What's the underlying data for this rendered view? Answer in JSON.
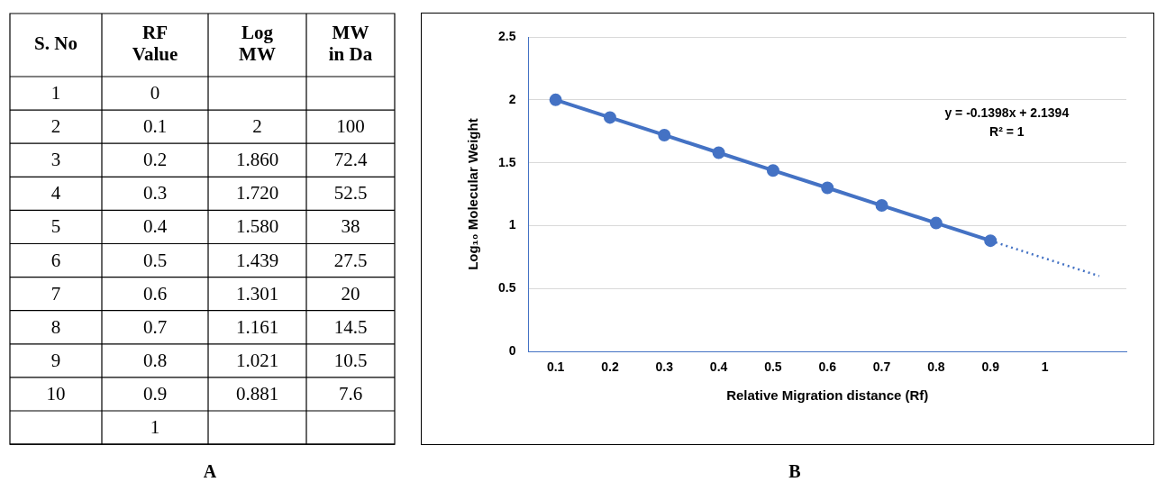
{
  "chart_data": [
    {
      "type": "heatmap",
      "ylabel": "S. No",
      "categories": [
        "RF Value",
        "Log MW",
        "MW in Da"
      ],
      "y_categories": [
        "1",
        "2",
        "3",
        "4",
        "5",
        "6",
        "7",
        "8",
        "9",
        "10",
        null
      ],
      "cells": [
        [
          0,
          null,
          null
        ],
        [
          0.1,
          2,
          100
        ],
        [
          0.2,
          1.86,
          72.4
        ],
        [
          0.3,
          1.72,
          52.5
        ],
        [
          0.4,
          1.58,
          38
        ],
        [
          0.5,
          1.439,
          27.5
        ],
        [
          0.6,
          1.301,
          20
        ],
        [
          0.7,
          1.161,
          14.5
        ],
        [
          0.8,
          1.021,
          10.5
        ],
        [
          0.9,
          0.881,
          7.6
        ],
        [
          1,
          null,
          null
        ]
      ],
      "cell_labels": [
        [
          "0",
          null,
          null
        ],
        [
          "0.1",
          "2",
          "100"
        ],
        [
          "0.2",
          "1.860",
          "72.4"
        ],
        [
          "0.3",
          "1.720",
          "52.5"
        ],
        [
          "0.4",
          "1.580",
          "38"
        ],
        [
          "0.5",
          "1.439",
          "27.5"
        ],
        [
          "0.6",
          "1.301",
          "20"
        ],
        [
          "0.7",
          "1.161",
          "14.5"
        ],
        [
          "0.8",
          "1.021",
          "10.5"
        ],
        [
          "0.9",
          "0.881",
          "7.6"
        ],
        [
          "1",
          null,
          null
        ]
      ],
      "data_labels": true,
      "annotations": [
        "A"
      ]
    },
    {
      "type": "line",
      "xlabel": "Relative Migration distance (Rf)",
      "ylabel": "Log₁₀ Molecular Weight",
      "x": [
        0.1,
        0.2,
        0.3,
        0.4,
        0.5,
        0.6,
        0.7,
        0.8,
        0.9
      ],
      "series": [
        {
          "color": "#4472c4",
          "values": [
            2,
            1.86,
            1.72,
            1.58,
            1.439,
            1.301,
            1.161,
            1.021,
            0.881
          ],
          "marker": "circle",
          "line_style": "solid"
        },
        {
          "type": "line",
          "color": "#4472c4",
          "x": [
            0.9,
            1.1
          ],
          "values": [
            0.881,
            0.6
          ],
          "marker": "none",
          "line_style": "dotted"
        }
      ],
      "xlim": [
        0.05,
        1.15
      ],
      "xticks": [
        0.1,
        0.2,
        0.3,
        0.4,
        0.5,
        0.6,
        0.7,
        0.8,
        0.9,
        1
      ],
      "ylim": [
        0,
        2.5
      ],
      "yticks": [
        0,
        0.5,
        1,
        1.5,
        2,
        2.5
      ],
      "grid": "y",
      "legend": false,
      "annotations": [
        "y = -0.1398x + 2.1394",
        "R² = 1",
        "B"
      ]
    }
  ]
}
